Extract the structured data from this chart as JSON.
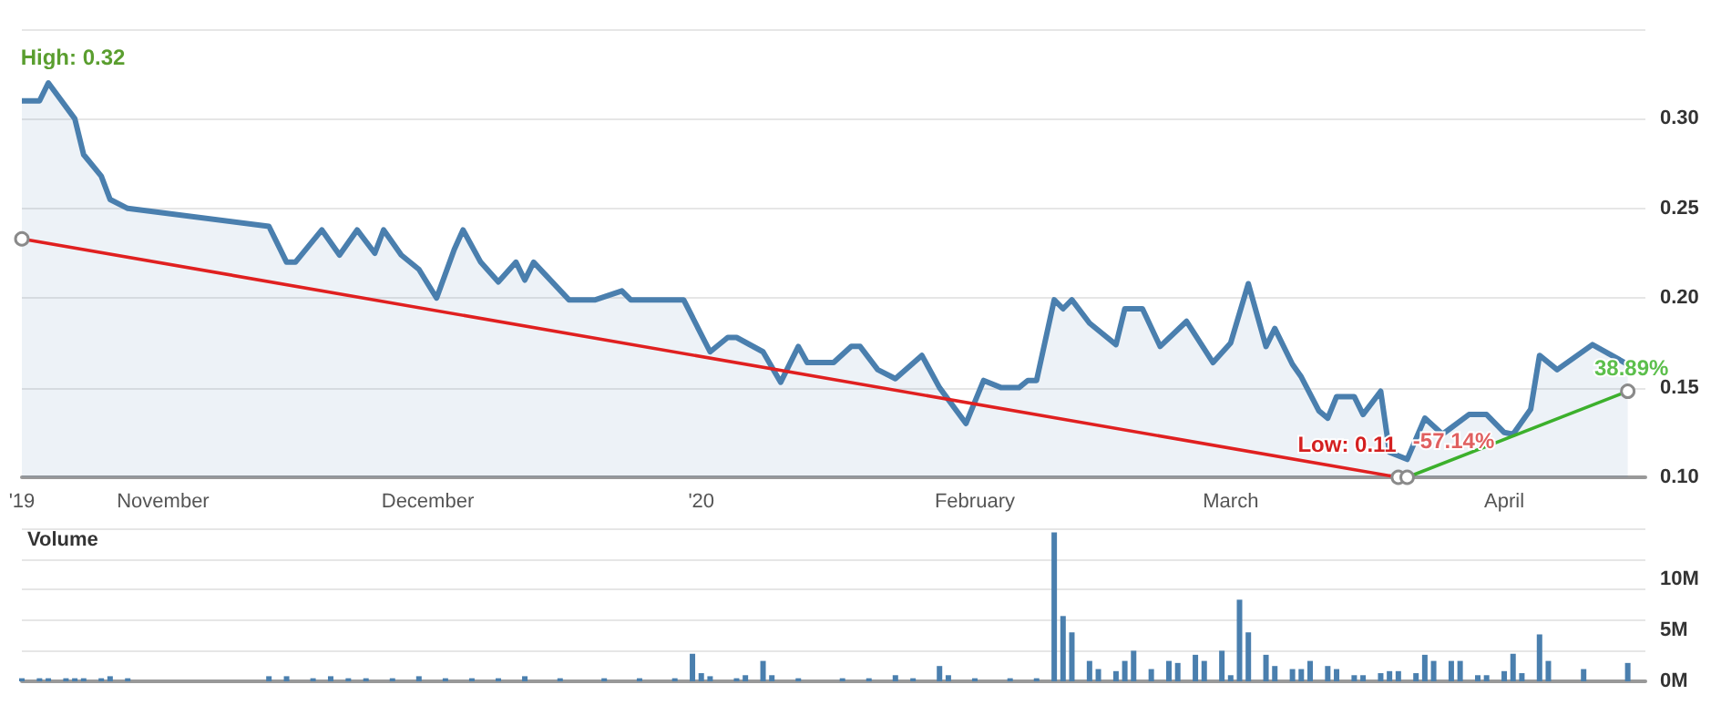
{
  "chart_data": [
    {
      "type": "area",
      "xlim": [
        "2019-10-16",
        "2020-04-17"
      ],
      "xticks": [
        {
          "value": "2019-10-16",
          "label": "'19"
        },
        {
          "value": "2019-11-01",
          "label": "November"
        },
        {
          "value": "2019-12-01",
          "label": "December"
        },
        {
          "value": "2020-01-01",
          "label": "'20"
        },
        {
          "value": "2020-02-01",
          "label": "February"
        },
        {
          "value": "2020-03-01",
          "label": "March"
        },
        {
          "value": "2020-04-01",
          "label": "April"
        }
      ],
      "ylim": [
        0.1,
        0.35
      ],
      "yticks": [
        {
          "value": 0.1,
          "label": "0.10"
        },
        {
          "value": 0.15,
          "label": "0.15"
        },
        {
          "value": 0.2,
          "label": "0.20"
        },
        {
          "value": 0.25,
          "label": "0.25"
        },
        {
          "value": 0.3,
          "label": "0.30"
        },
        {
          "value": 0.35,
          "label": null
        }
      ],
      "grid": "y",
      "series": [
        {
          "color": "#4a7fae",
          "marker": "none",
          "x": [
            "2019-10-16",
            "2019-10-18",
            "2019-10-19",
            "2019-10-22",
            "2019-10-23",
            "2019-10-25",
            "2019-10-26",
            "2019-10-28",
            "2019-11-13",
            "2019-11-15",
            "2019-11-16",
            "2019-11-19",
            "2019-11-21",
            "2019-11-23",
            "2019-11-25",
            "2019-11-26",
            "2019-11-28",
            "2019-11-30",
            "2019-12-02",
            "2019-12-04",
            "2019-12-05",
            "2019-12-07",
            "2019-12-09",
            "2019-12-11",
            "2019-12-12",
            "2019-12-13",
            "2019-12-17",
            "2019-12-20",
            "2019-12-23",
            "2019-12-24",
            "2019-12-30",
            "2020-01-02",
            "2020-01-04",
            "2020-01-05",
            "2020-01-08",
            "2020-01-10",
            "2020-01-12",
            "2020-01-13",
            "2020-01-16",
            "2020-01-18",
            "2020-01-19",
            "2020-01-21",
            "2020-01-23",
            "2020-01-26",
            "2020-01-28",
            "2020-01-31",
            "2020-02-02",
            "2020-02-04",
            "2020-02-06",
            "2020-02-07",
            "2020-02-08",
            "2020-02-10",
            "2020-02-11",
            "2020-02-12",
            "2020-02-14",
            "2020-02-17",
            "2020-02-18",
            "2020-02-20",
            "2020-02-22",
            "2020-02-25",
            "2020-02-28",
            "2020-03-01",
            "2020-03-03",
            "2020-03-05",
            "2020-03-06",
            "2020-03-08",
            "2020-03-09",
            "2020-03-11",
            "2020-03-12",
            "2020-03-13",
            "2020-03-15",
            "2020-03-16",
            "2020-03-18",
            "2020-03-19",
            "2020-03-21",
            "2020-03-23",
            "2020-03-25",
            "2020-03-28",
            "2020-03-30",
            "2020-04-01",
            "2020-04-02",
            "2020-04-04",
            "2020-04-05",
            "2020-04-07",
            "2020-04-11",
            "2020-04-15"
          ],
          "values": [
            0.31,
            0.31,
            0.32,
            0.3,
            0.28,
            0.268,
            0.255,
            0.25,
            0.24,
            0.22,
            0.22,
            0.238,
            0.224,
            0.238,
            0.225,
            0.238,
            0.224,
            0.216,
            0.2,
            0.227,
            0.238,
            0.22,
            0.209,
            0.22,
            0.21,
            0.22,
            0.199,
            0.199,
            0.204,
            0.199,
            0.199,
            0.17,
            0.178,
            0.178,
            0.17,
            0.153,
            0.173,
            0.164,
            0.164,
            0.173,
            0.173,
            0.16,
            0.155,
            0.168,
            0.15,
            0.13,
            0.154,
            0.15,
            0.15,
            0.154,
            0.154,
            0.199,
            0.194,
            0.199,
            0.186,
            0.174,
            0.194,
            0.194,
            0.173,
            0.187,
            0.164,
            0.175,
            0.208,
            0.173,
            0.183,
            0.163,
            0.156,
            0.137,
            0.133,
            0.145,
            0.145,
            0.135,
            0.148,
            0.114,
            0.11,
            0.133,
            0.124,
            0.135,
            0.135,
            0.125,
            0.124,
            0.138,
            0.168,
            0.16,
            0.174,
            0.163
          ]
        },
        {
          "type": "line",
          "color": "#e02020",
          "marker": "circle",
          "x": [
            "2019-10-16",
            "2020-03-20"
          ],
          "values": [
            0.233,
            0.1
          ]
        },
        {
          "type": "line",
          "color": "#3cb02c",
          "marker": "circle",
          "x": [
            "2020-03-21",
            "2020-04-15"
          ],
          "values": [
            0.1,
            0.148
          ]
        }
      ],
      "annotations": [
        {
          "text": "High: 0.32",
          "x": "2019-10-19",
          "y": 0.32
        },
        {
          "text": "Low: 0.11",
          "x": "2020-03-21",
          "y": 0.11
        },
        {
          "text": "-57.14%",
          "x": "2020-03-20",
          "y": 0.1
        },
        {
          "text": "38.89%",
          "x": "2020-04-15",
          "y": 0.148
        }
      ]
    },
    {
      "type": "bar",
      "title": "Volume",
      "xlim": [
        "2019-10-16",
        "2020-04-17"
      ],
      "ylim": [
        0,
        15000000
      ],
      "yticks": [
        {
          "value": 0,
          "label": "0M"
        },
        {
          "value": 5000000,
          "label": "5M"
        },
        {
          "value": 10000000,
          "label": "10M"
        }
      ],
      "grid": "y",
      "tick_labels": "y",
      "series": [
        {
          "color": "#4a7fae",
          "x": [
            "2019-10-16",
            "2019-10-18",
            "2019-10-19",
            "2019-10-21",
            "2019-10-22",
            "2019-10-23",
            "2019-10-25",
            "2019-10-26",
            "2019-10-28",
            "2019-11-13",
            "2019-11-15",
            "2019-11-18",
            "2019-11-20",
            "2019-11-22",
            "2019-11-24",
            "2019-11-27",
            "2019-11-30",
            "2019-12-03",
            "2019-12-06",
            "2019-12-09",
            "2019-12-12",
            "2019-12-16",
            "2019-12-21",
            "2019-12-25",
            "2019-12-29",
            "2019-12-31",
            "2020-01-01",
            "2020-01-02",
            "2020-01-05",
            "2020-01-06",
            "2020-01-08",
            "2020-01-09",
            "2020-01-12",
            "2020-01-17",
            "2020-01-20",
            "2020-01-23",
            "2020-01-25",
            "2020-01-28",
            "2020-01-29",
            "2020-02-01",
            "2020-02-05",
            "2020-02-08",
            "2020-02-10",
            "2020-02-11",
            "2020-02-12",
            "2020-02-14",
            "2020-02-15",
            "2020-02-17",
            "2020-02-18",
            "2020-02-19",
            "2020-02-21",
            "2020-02-23",
            "2020-02-24",
            "2020-02-26",
            "2020-02-27",
            "2020-02-29",
            "2020-03-01",
            "2020-03-02",
            "2020-03-03",
            "2020-03-05",
            "2020-03-06",
            "2020-03-08",
            "2020-03-09",
            "2020-03-10",
            "2020-03-12",
            "2020-03-13",
            "2020-03-15",
            "2020-03-16",
            "2020-03-18",
            "2020-03-19",
            "2020-03-20",
            "2020-03-22",
            "2020-03-23",
            "2020-03-24",
            "2020-03-26",
            "2020-03-27",
            "2020-03-29",
            "2020-03-30",
            "2020-04-01",
            "2020-04-02",
            "2020-04-03",
            "2020-04-05",
            "2020-04-06",
            "2020-04-10",
            "2020-04-15"
          ],
          "values": [
            300000,
            300000,
            300000,
            300000,
            300000,
            300000,
            300000,
            500000,
            300000,
            500000,
            500000,
            300000,
            500000,
            300000,
            300000,
            300000,
            500000,
            300000,
            300000,
            300000,
            500000,
            300000,
            300000,
            300000,
            300000,
            2700000,
            800000,
            500000,
            300000,
            600000,
            2000000,
            600000,
            300000,
            300000,
            300000,
            600000,
            300000,
            1500000,
            600000,
            300000,
            300000,
            300000,
            14600000,
            6400000,
            4800000,
            2000000,
            1200000,
            1000000,
            2000000,
            3000000,
            1200000,
            2000000,
            1800000,
            2600000,
            2000000,
            3000000,
            600000,
            8000000,
            4800000,
            2600000,
            1500000,
            1200000,
            1200000,
            2000000,
            1500000,
            1200000,
            600000,
            600000,
            800000,
            1000000,
            1000000,
            800000,
            2600000,
            2000000,
            2000000,
            2000000,
            600000,
            600000,
            1000000,
            2700000,
            800000,
            4600000,
            2000000,
            1200000,
            1800000
          ]
        }
      ]
    }
  ]
}
